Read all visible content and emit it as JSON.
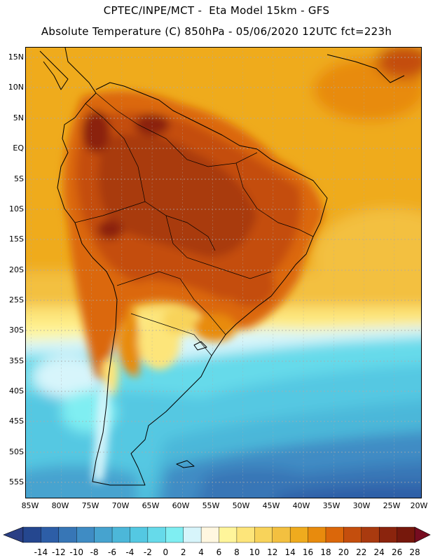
{
  "header": {
    "line1": "CPTEC/INPE/MCT -  Eta Model 15km - GFS",
    "line2": "Absolute Temperature (C) 850hPa - 05/06/2020 12UTC fct=223h"
  },
  "map": {
    "lat_ticks": [
      "15N",
      "10N",
      "5N",
      "EQ",
      "5S",
      "10S",
      "15S",
      "20S",
      "25S",
      "30S",
      "35S",
      "40S",
      "45S",
      "50S",
      "55S"
    ],
    "lon_ticks": [
      "85W",
      "80W",
      "75W",
      "70W",
      "65W",
      "60W",
      "55W",
      "50W",
      "45W",
      "40W",
      "35W",
      "30W",
      "25W",
      "20W"
    ],
    "lat_range": [
      -58,
      17
    ],
    "lon_range": [
      -86,
      -20
    ]
  },
  "colorbar": {
    "labels": [
      "-14",
      "-12",
      "-10",
      "-8",
      "-6",
      "-4",
      "-2",
      "0",
      "2",
      "4",
      "6",
      "8",
      "10",
      "12",
      "14",
      "16",
      "18",
      "20",
      "22",
      "24",
      "26",
      "28"
    ],
    "colors": [
      "#25478f",
      "#2d5ea7",
      "#3776b6",
      "#3f8cc4",
      "#46a3cf",
      "#4cb7d9",
      "#54c8e2",
      "#66daea",
      "#7feef2",
      "#d7f5fb",
      "#fff7e0",
      "#fff59a",
      "#fde57a",
      "#f8d35a",
      "#f3c040",
      "#efab1e",
      "#e88b0d",
      "#db670a",
      "#c44e0d",
      "#a93a0f",
      "#8b240d",
      "#76180c"
    ],
    "under_color": "#2a3f85",
    "over_color": "#760c20"
  }
}
